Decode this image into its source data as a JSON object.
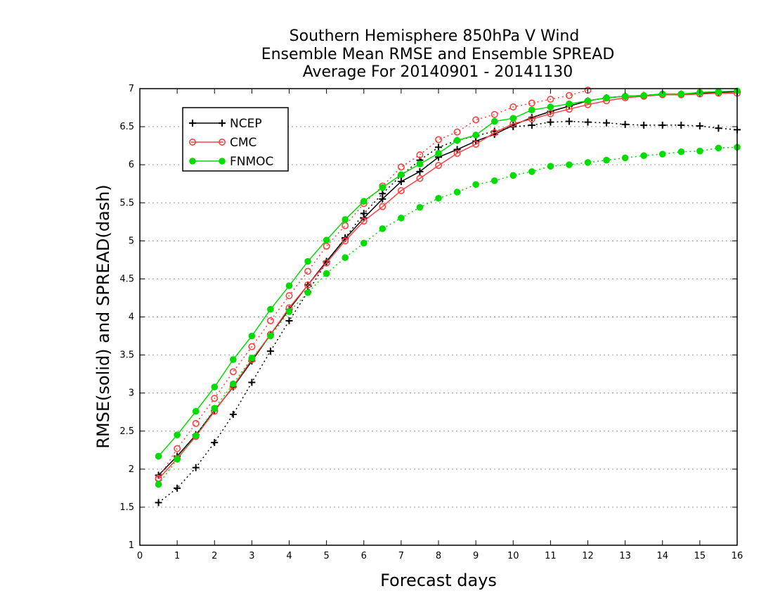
{
  "chart_data": {
    "type": "line",
    "title": [
      "Southern Hemisphere 850hPa V Wind",
      "Ensemble Mean RMSE and Ensemble SPREAD",
      "Average For 20140901 - 20141130"
    ],
    "xlabel": "Forecast days",
    "ylabel": "RMSE(solid) and SPREAD(dash)",
    "xlim": [
      0,
      16
    ],
    "ylim": [
      1,
      7
    ],
    "x_ticks": [
      "0",
      "1",
      "2",
      "3",
      "4",
      "5",
      "6",
      "7",
      "8",
      "9",
      "10",
      "11",
      "12",
      "13",
      "14",
      "15",
      "16"
    ],
    "y_ticks": [
      "1",
      "1.5",
      "2",
      "2.5",
      "3",
      "3.5",
      "4",
      "4.5",
      "5",
      "5.5",
      "6",
      "6.5",
      "7"
    ],
    "grid": "horizontal dotted",
    "legend_position": "top-left",
    "x": [
      0.5,
      1,
      1.5,
      2,
      2.5,
      3,
      3.5,
      4,
      4.5,
      5,
      5.5,
      6,
      6.5,
      7,
      7.5,
      8,
      8.5,
      9,
      9.5,
      10,
      10.5,
      11,
      11.5,
      12,
      12.5,
      13,
      13.5,
      14,
      14.5,
      15,
      15.5,
      16
    ],
    "series": [
      {
        "name": "NCEP",
        "color": "#000000",
        "marker": "plus",
        "rmse": [
          1.92,
          2.17,
          2.45,
          2.77,
          3.08,
          3.42,
          3.77,
          4.1,
          4.42,
          4.73,
          5.03,
          5.3,
          5.55,
          5.78,
          5.91,
          6.1,
          6.2,
          6.31,
          6.4,
          6.52,
          6.62,
          6.7,
          6.77,
          6.84,
          6.88,
          6.9,
          6.91,
          6.93,
          6.93,
          6.94,
          6.95,
          6.96
        ],
        "spread": [
          1.56,
          1.75,
          2.02,
          2.35,
          2.72,
          3.14,
          3.55,
          3.95,
          4.33,
          4.72,
          5.04,
          5.36,
          5.62,
          5.86,
          6.06,
          6.23,
          6.32,
          6.38,
          6.44,
          6.5,
          6.52,
          6.56,
          6.57,
          6.56,
          6.55,
          6.53,
          6.52,
          6.52,
          6.52,
          6.51,
          6.48,
          6.46
        ]
      },
      {
        "name": "CMC",
        "color": "#ff4040",
        "marker": "open-circle",
        "rmse": [
          1.87,
          2.14,
          2.43,
          2.76,
          3.09,
          3.44,
          3.77,
          4.12,
          4.42,
          4.71,
          5.0,
          5.26,
          5.45,
          5.66,
          5.82,
          5.99,
          6.15,
          6.27,
          6.42,
          6.54,
          6.6,
          6.67,
          6.73,
          6.79,
          6.84,
          6.88,
          6.9,
          6.92,
          6.92,
          6.93,
          6.94,
          6.94
        ],
        "spread": [
          1.88,
          2.27,
          2.6,
          2.93,
          3.28,
          3.61,
          3.95,
          4.28,
          4.6,
          4.93,
          5.2,
          5.49,
          5.72,
          5.97,
          6.13,
          6.33,
          6.43,
          6.59,
          6.66,
          6.76,
          6.81,
          6.86,
          6.91,
          6.98,
          7.02,
          7.04,
          7.06,
          7.07,
          7.08,
          7.09,
          7.09,
          7.1
        ]
      },
      {
        "name": "FNMOC",
        "color": "#00dd00",
        "marker": "filled-circle",
        "rmse": [
          2.17,
          2.45,
          2.76,
          3.08,
          3.44,
          3.75,
          4.1,
          4.41,
          4.73,
          5.01,
          5.28,
          5.52,
          5.7,
          5.87,
          6.01,
          6.15,
          6.32,
          6.39,
          6.57,
          6.61,
          6.72,
          6.76,
          6.8,
          6.84,
          6.88,
          6.9,
          6.91,
          6.93,
          6.93,
          6.95,
          6.96,
          6.97
        ],
        "spread": [
          1.8,
          2.13,
          2.44,
          2.8,
          3.12,
          3.46,
          3.75,
          4.07,
          4.32,
          4.57,
          4.78,
          4.97,
          5.16,
          5.3,
          5.44,
          5.56,
          5.64,
          5.74,
          5.79,
          5.86,
          5.91,
          5.98,
          6.0,
          6.03,
          6.06,
          6.09,
          6.12,
          6.14,
          6.17,
          6.18,
          6.22,
          6.23
        ]
      }
    ]
  }
}
